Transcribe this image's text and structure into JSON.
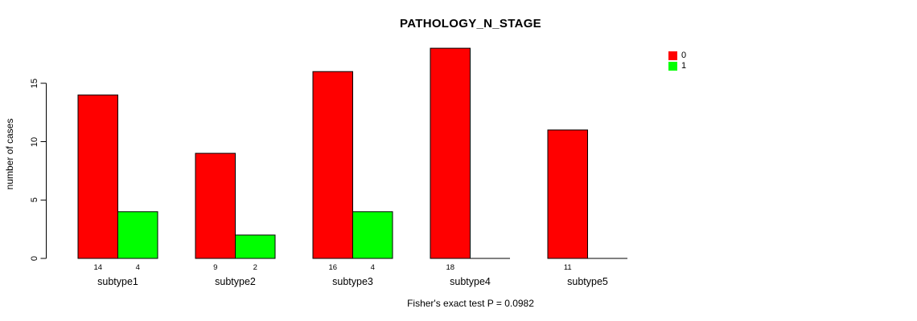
{
  "chart_data": {
    "type": "bar",
    "title": "PATHOLOGY_N_STAGE",
    "ylabel": "number of cases",
    "xlabel": "",
    "annotation": "Fisher's exact test P = 0.0982",
    "categories": [
      "subtype1",
      "subtype2",
      "subtype3",
      "subtype4",
      "subtype5"
    ],
    "series": [
      {
        "name": "0",
        "color": "#ff0000",
        "values": [
          14,
          9,
          16,
          18,
          11
        ]
      },
      {
        "name": "1",
        "color": "#00ff00",
        "values": [
          4,
          2,
          4,
          0,
          0
        ]
      }
    ],
    "yticks": [
      0,
      5,
      10,
      15
    ],
    "ylim": [
      0,
      18
    ],
    "bar_value_labels_shown": true,
    "zero_bars_drawn_as_baseline": true,
    "legend_position": "top-right",
    "grid": false,
    "axis_color": "#000000",
    "bar_border_color": "#000000",
    "background_color": "#ffffff"
  }
}
